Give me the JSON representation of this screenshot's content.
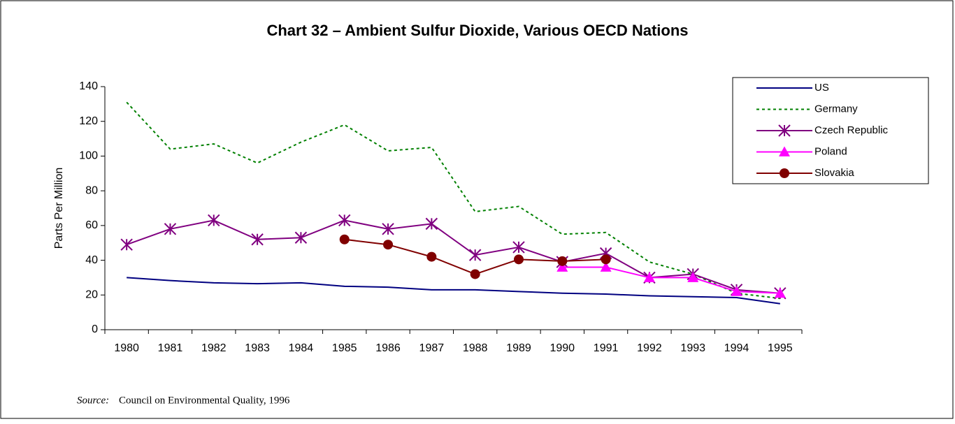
{
  "chart_data": {
    "type": "line",
    "title": "Chart 32 – Ambient Sulfur Dioxide, Various OECD Nations",
    "y_label": "Parts Per Million",
    "source_label": "Source:",
    "source_text": "Council on Environmental Quality, 1996",
    "categories": [
      "1980",
      "1981",
      "1982",
      "1983",
      "1984",
      "1985",
      "1986",
      "1987",
      "1988",
      "1989",
      "1990",
      "1991",
      "1992",
      "1993",
      "1994",
      "1995"
    ],
    "ylim": [
      0,
      140
    ],
    "yticks": [
      0,
      20,
      40,
      60,
      80,
      100,
      120,
      140
    ],
    "legend": "upper right",
    "series": [
      {
        "name": "US",
        "color": "#000080",
        "dash": false,
        "marker": "none",
        "values": [
          30,
          28.3,
          27,
          26.5,
          27,
          25,
          24.5,
          23,
          23,
          22,
          21,
          20.5,
          19.5,
          19,
          18.5,
          15
        ]
      },
      {
        "name": "Germany",
        "color": "#008000",
        "dash": true,
        "marker": "none",
        "values": [
          131,
          104,
          107,
          96,
          108,
          118,
          103,
          105,
          68,
          71,
          55,
          56,
          39,
          32,
          21,
          18
        ]
      },
      {
        "name": "Czech Republic",
        "color": "#800080",
        "dash": false,
        "marker": "asterisk",
        "values": [
          49,
          58,
          63,
          52,
          53,
          63,
          58,
          61,
          43,
          47.5,
          39,
          44,
          30,
          32,
          23,
          21
        ]
      },
      {
        "name": "Poland",
        "color": "#ff00ff",
        "dash": false,
        "marker": "triangle",
        "values": [
          null,
          null,
          null,
          null,
          null,
          null,
          null,
          null,
          null,
          null,
          36,
          36,
          30,
          30,
          22,
          21
        ]
      },
      {
        "name": "Slovakia",
        "color": "#800000",
        "dash": false,
        "marker": "circle",
        "values": [
          null,
          null,
          null,
          null,
          null,
          52,
          49,
          42,
          32,
          40.5,
          39.5,
          40.5,
          null,
          null,
          null,
          null
        ]
      }
    ]
  }
}
